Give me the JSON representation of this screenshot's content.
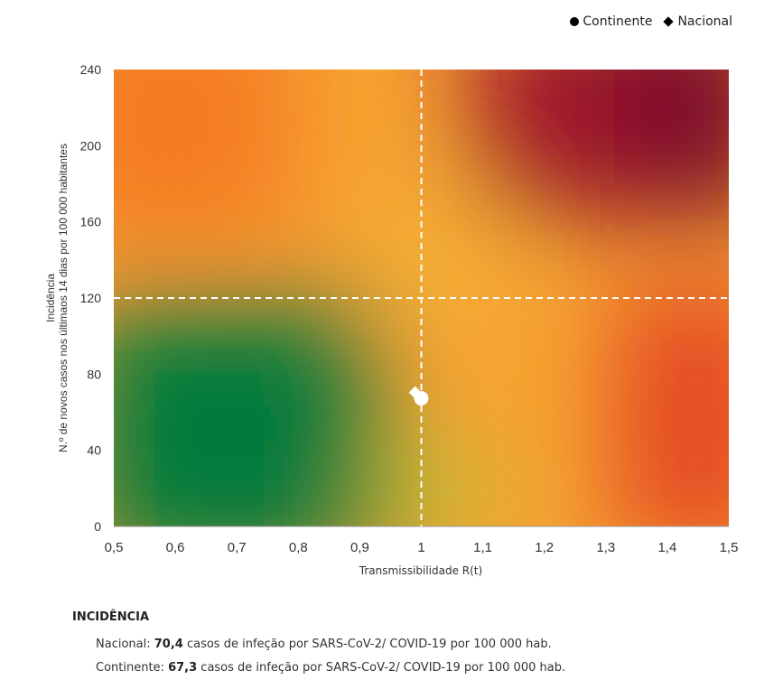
{
  "legend": {
    "continente": "Continente",
    "nacional": "Nacional"
  },
  "chart_data": {
    "type": "scatter",
    "title": "",
    "xlabel": "Transmissibilidade R(t)",
    "ylabel_line1": "Incidência",
    "ylabel_line2": "N.º de novos casos nos últimaos 14 dias por 100 000 habitantes",
    "xlim": [
      0.5,
      1.5
    ],
    "ylim": [
      0,
      240
    ],
    "x_ticks": [
      "0,5",
      "0,6",
      "0,7",
      "0,8",
      "0,9",
      "1",
      "1,1",
      "1,2",
      "1,3",
      "1,4",
      "1,5"
    ],
    "y_ticks": [
      "0",
      "40",
      "80",
      "120",
      "160",
      "200",
      "240"
    ],
    "thresholds": {
      "x": 1.0,
      "y": 120
    },
    "background": "risk-gradient: green (low R, low incidence) to dark red (high R, high incidence)",
    "series": [
      {
        "name": "Continente",
        "marker": "circle",
        "x": 1.0,
        "y": 67.3,
        "color": "#ffffff"
      },
      {
        "name": "Nacional",
        "marker": "diamond",
        "x": 0.99,
        "y": 70.4,
        "color": "#ffffff"
      }
    ]
  },
  "notes": {
    "title": "INCIDÊNCIA",
    "nacional_label": "Nacional:",
    "nacional_value": "70,4",
    "nacional_text": "casos de infeção por SARS-CoV-2/ COVID-19 por 100 000 hab.",
    "continente_label": "Continente:",
    "continente_value": "67,3",
    "continente_text": "casos de infeção por SARS-CoV-2/ COVID-19 por 100 000 hab."
  }
}
